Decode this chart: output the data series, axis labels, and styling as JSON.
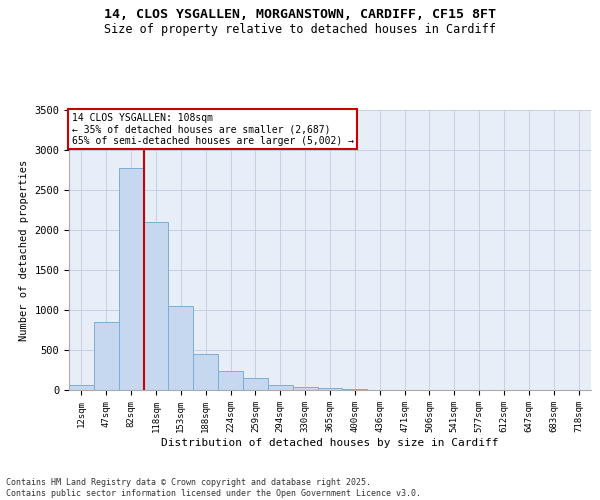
{
  "title_line1": "14, CLOS YSGALLEN, MORGANSTOWN, CARDIFF, CF15 8FT",
  "title_line2": "Size of property relative to detached houses in Cardiff",
  "xlabel": "Distribution of detached houses by size in Cardiff",
  "ylabel": "Number of detached properties",
  "categories": [
    "12sqm",
    "47sqm",
    "82sqm",
    "118sqm",
    "153sqm",
    "188sqm",
    "224sqm",
    "259sqm",
    "294sqm",
    "330sqm",
    "365sqm",
    "400sqm",
    "436sqm",
    "471sqm",
    "506sqm",
    "541sqm",
    "577sqm",
    "612sqm",
    "647sqm",
    "683sqm",
    "718sqm"
  ],
  "values": [
    60,
    850,
    2775,
    2100,
    1050,
    450,
    240,
    155,
    60,
    40,
    20,
    10,
    5,
    5,
    2,
    1,
    0,
    0,
    0,
    0,
    0
  ],
  "bar_color": "#c5d8f0",
  "bar_edge_color": "#7bafd4",
  "bar_edge_width": 0.7,
  "vline_color": "#cc0000",
  "vline_x": 2.5,
  "annotation_text": "14 CLOS YSGALLEN: 108sqm\n← 35% of detached houses are smaller (2,687)\n65% of semi-detached houses are larger (5,002) →",
  "annotation_box_color": "#cc0000",
  "annotation_bg": "#ffffff",
  "grid_color": "#c0cce0",
  "bg_color": "#e8eef8",
  "ylim": [
    0,
    3500
  ],
  "yticks": [
    0,
    500,
    1000,
    1500,
    2000,
    2500,
    3000,
    3500
  ],
  "footer_line1": "Contains HM Land Registry data © Crown copyright and database right 2025.",
  "footer_line2": "Contains public sector information licensed under the Open Government Licence v3.0."
}
